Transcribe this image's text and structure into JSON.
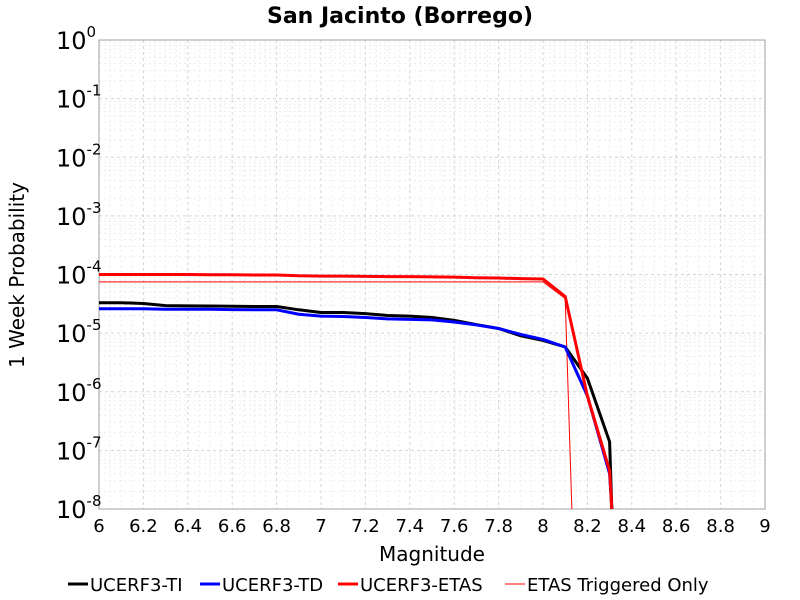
{
  "chart_data": {
    "type": "line",
    "title": "San Jacinto (Borrego)",
    "xlabel": "Magnitude",
    "ylabel": "1 Week Probability",
    "xlim": [
      6,
      9
    ],
    "ylim": [
      1e-08,
      1
    ],
    "yscale": "log",
    "grid": true,
    "legend_position": "bottom",
    "x_ticks": [
      "6",
      "6.2",
      "6.4",
      "6.6",
      "6.8",
      "7",
      "7.2",
      "7.4",
      "7.6",
      "7.8",
      "8",
      "8.2",
      "8.4",
      "8.6",
      "8.8",
      "9"
    ],
    "y_ticks": [
      {
        "base": "10",
        "exp": "0"
      },
      {
        "base": "10",
        "exp": "-1"
      },
      {
        "base": "10",
        "exp": "-2"
      },
      {
        "base": "10",
        "exp": "-3"
      },
      {
        "base": "10",
        "exp": "-4"
      },
      {
        "base": "10",
        "exp": "-5"
      },
      {
        "base": "10",
        "exp": "-6"
      },
      {
        "base": "10",
        "exp": "-7"
      },
      {
        "base": "10",
        "exp": "-8"
      }
    ],
    "series": [
      {
        "name": "UCERF3-TI",
        "color": "#000000",
        "points": [
          [
            6.0,
            3.3e-05
          ],
          [
            6.1,
            3.3e-05
          ],
          [
            6.2,
            3.2e-05
          ],
          [
            6.3,
            2.95e-05
          ],
          [
            6.4,
            2.92e-05
          ],
          [
            6.5,
            2.9e-05
          ],
          [
            6.6,
            2.88e-05
          ],
          [
            6.7,
            2.85e-05
          ],
          [
            6.8,
            2.85e-05
          ],
          [
            6.9,
            2.5e-05
          ],
          [
            7.0,
            2.25e-05
          ],
          [
            7.1,
            2.25e-05
          ],
          [
            7.2,
            2.15e-05
          ],
          [
            7.3,
            2e-05
          ],
          [
            7.4,
            1.95e-05
          ],
          [
            7.5,
            1.85e-05
          ],
          [
            7.6,
            1.65e-05
          ],
          [
            7.7,
            1.4e-05
          ],
          [
            7.8,
            1.2e-05
          ],
          [
            7.9,
            9e-06
          ],
          [
            8.0,
            7.5e-06
          ],
          [
            8.1,
            5.8e-06
          ],
          [
            8.2,
            1.7e-06
          ],
          [
            8.3,
            1.4e-07
          ],
          [
            8.31,
            1e-08
          ]
        ]
      },
      {
        "name": "UCERF3-TD",
        "color": "#0000ff",
        "points": [
          [
            6.0,
            2.6e-05
          ],
          [
            6.1,
            2.6e-05
          ],
          [
            6.2,
            2.6e-05
          ],
          [
            6.3,
            2.55e-05
          ],
          [
            6.4,
            2.55e-05
          ],
          [
            6.5,
            2.55e-05
          ],
          [
            6.6,
            2.52e-05
          ],
          [
            6.7,
            2.5e-05
          ],
          [
            6.8,
            2.5e-05
          ],
          [
            6.9,
            2.1e-05
          ],
          [
            7.0,
            1.95e-05
          ],
          [
            7.1,
            1.92e-05
          ],
          [
            7.2,
            1.85e-05
          ],
          [
            7.3,
            1.75e-05
          ],
          [
            7.4,
            1.72e-05
          ],
          [
            7.5,
            1.68e-05
          ],
          [
            7.6,
            1.55e-05
          ],
          [
            7.7,
            1.38e-05
          ],
          [
            7.8,
            1.2e-05
          ],
          [
            7.9,
            9.5e-06
          ],
          [
            8.0,
            7.8e-06
          ],
          [
            8.1,
            5.8e-06
          ],
          [
            8.2,
            8.5e-07
          ],
          [
            8.3,
            4e-08
          ],
          [
            8.31,
            1e-08
          ]
        ]
      },
      {
        "name": "UCERF3-ETAS",
        "color": "#ff0000",
        "points": [
          [
            6.0,
            0.0001
          ],
          [
            6.1,
            0.0001
          ],
          [
            6.2,
            0.0001
          ],
          [
            6.3,
            0.0001
          ],
          [
            6.4,
            0.0001
          ],
          [
            6.5,
            9.9e-05
          ],
          [
            6.6,
            9.9e-05
          ],
          [
            6.7,
            9.8e-05
          ],
          [
            6.8,
            9.8e-05
          ],
          [
            6.9,
            9.5e-05
          ],
          [
            7.0,
            9.4e-05
          ],
          [
            7.1,
            9.4e-05
          ],
          [
            7.2,
            9.3e-05
          ],
          [
            7.3,
            9.2e-05
          ],
          [
            7.4,
            9.2e-05
          ],
          [
            7.5,
            9.1e-05
          ],
          [
            7.6,
            9e-05
          ],
          [
            7.7,
            8.8e-05
          ],
          [
            7.8,
            8.7e-05
          ],
          [
            7.9,
            8.5e-05
          ],
          [
            8.0,
            8.4e-05
          ],
          [
            8.1,
            4.2e-05
          ],
          [
            8.2,
            8.5e-07
          ],
          [
            8.3,
            4.5e-08
          ],
          [
            8.31,
            1e-08
          ]
        ]
      },
      {
        "name": "ETAS Triggered Only",
        "color": "#ff0000",
        "thin": true,
        "points": [
          [
            6.0,
            7.5e-05
          ],
          [
            6.5,
            7.5e-05
          ],
          [
            7.0,
            7.5e-05
          ],
          [
            7.5,
            7.5e-05
          ],
          [
            8.0,
            7.5e-05
          ],
          [
            8.1,
            3.9e-05
          ],
          [
            8.13,
            1e-08
          ]
        ]
      }
    ]
  }
}
